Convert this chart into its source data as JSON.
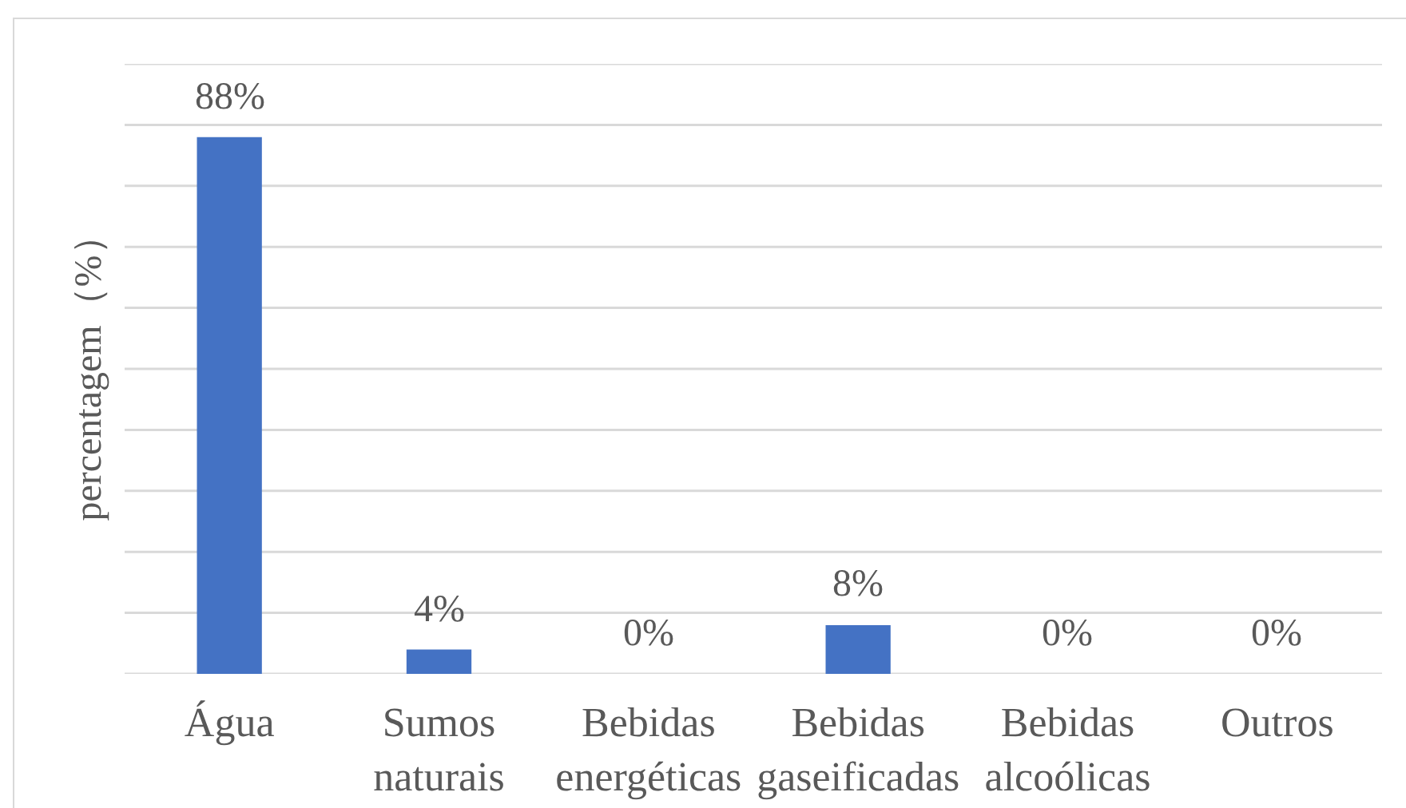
{
  "chart_data": {
    "type": "bar",
    "ylabel": "percentagem（%）",
    "categories": [
      "Água",
      "Sumos naturais",
      "Bebidas energéticas",
      "Bebidas gaseificadas",
      "Bebidas alcoólicas",
      "Outros"
    ],
    "values": [
      88,
      4,
      0,
      8,
      0,
      0
    ],
    "value_labels": [
      "88%",
      "4%",
      "0%",
      "8%",
      "0%",
      "0%"
    ],
    "color": "#4472c4",
    "ylim": [
      0,
      100
    ],
    "yticks": [
      {
        "value": 0,
        "label": null
      },
      {
        "value": 10,
        "label": null
      },
      {
        "value": 20,
        "label": null
      },
      {
        "value": 30,
        "label": null
      },
      {
        "value": 40,
        "label": null
      },
      {
        "value": 50,
        "label": null
      },
      {
        "value": 60,
        "label": null
      },
      {
        "value": 70,
        "label": null
      },
      {
        "value": 80,
        "label": null
      },
      {
        "value": 90,
        "label": null
      },
      {
        "value": 100,
        "label": null
      }
    ],
    "grid": "y",
    "tick_labels": "x"
  }
}
